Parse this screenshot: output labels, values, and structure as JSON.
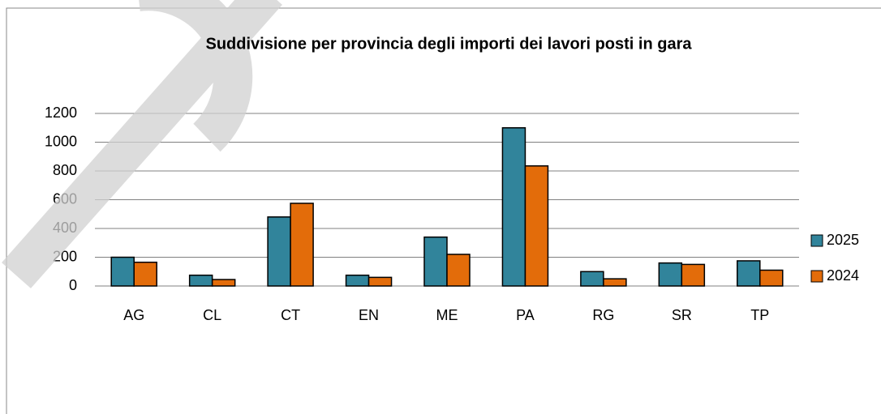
{
  "chart_data": {
    "type": "bar",
    "title": "Suddivisione per provincia degli importi dei lavori posti in gara",
    "categories": [
      "AG",
      "CL",
      "CT",
      "EN",
      "ME",
      "PA",
      "RG",
      "SR",
      "TP"
    ],
    "series": [
      {
        "name": "2025",
        "color": "#31849b",
        "values": [
          200,
          75,
          480,
          75,
          340,
          1100,
          100,
          160,
          175
        ]
      },
      {
        "name": "2024",
        "color": "#e36c0a",
        "values": [
          165,
          45,
          575,
          60,
          220,
          835,
          50,
          150,
          110
        ]
      }
    ],
    "ylim": [
      0,
      1200
    ],
    "yticks": [
      0,
      200,
      400,
      600,
      800,
      1000,
      1200
    ],
    "grid": true,
    "legend": "right"
  }
}
